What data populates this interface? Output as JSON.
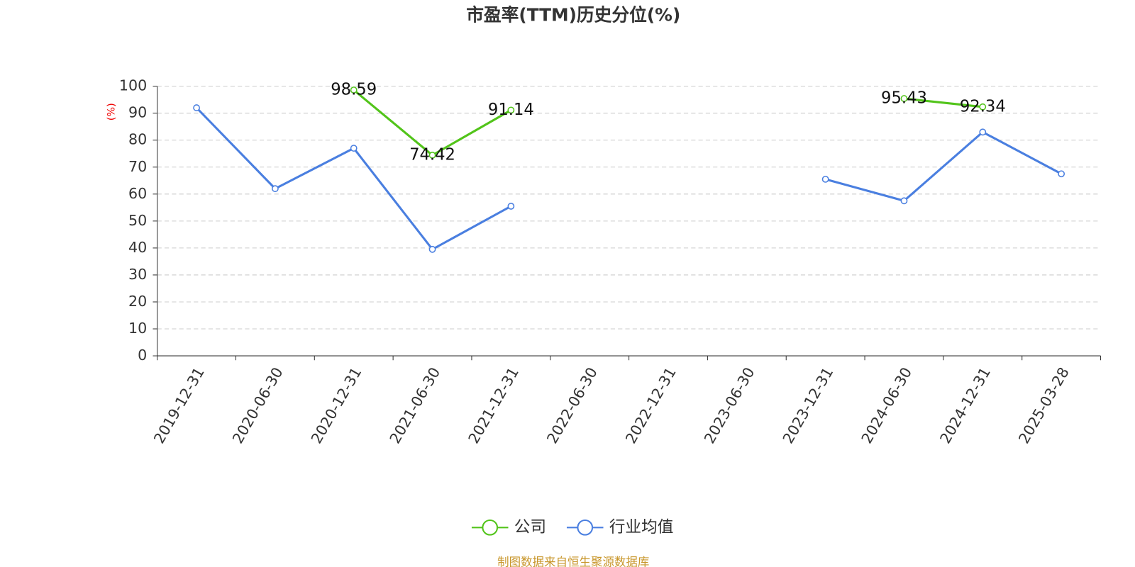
{
  "chart_data": {
    "type": "line",
    "title": "市盈率(TTM)历史分位(%)",
    "y_axis_label": "(%)",
    "categories": [
      "2019-12-31",
      "2020-06-30",
      "2020-12-31",
      "2021-06-30",
      "2021-12-31",
      "2022-06-30",
      "2022-12-31",
      "2023-06-30",
      "2023-12-31",
      "2024-06-30",
      "2024-12-31",
      "2025-03-28"
    ],
    "series": [
      {
        "name": "公司",
        "color": "#52c41a",
        "data_labels": true,
        "values": [
          null,
          null,
          98.59,
          74.42,
          91.14,
          null,
          null,
          null,
          null,
          95.43,
          92.34,
          null
        ]
      },
      {
        "name": "行业均值",
        "color": "#4a7fe0",
        "data_labels": false,
        "values": [
          92,
          62,
          77,
          39.5,
          55.5,
          null,
          null,
          null,
          65.5,
          57.5,
          83,
          67.5
        ]
      }
    ],
    "ylim": [
      0,
      100
    ],
    "yticks": [
      0,
      10,
      20,
      30,
      40,
      50,
      60,
      70,
      80,
      90,
      100
    ],
    "grid": true,
    "legend": "bottom",
    "source": "制图数据来自恒生聚源数据库"
  }
}
